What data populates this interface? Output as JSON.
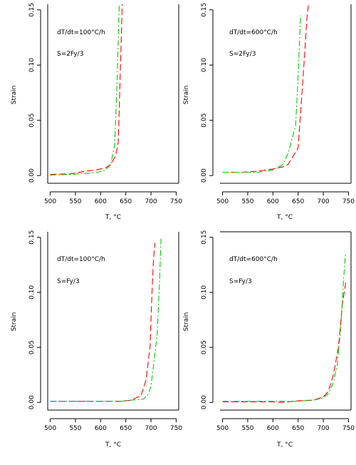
{
  "chart_data": [
    {
      "type": "line",
      "xlabel": "T, °C",
      "ylabel": "Strain",
      "xlim": [
        495,
        755
      ],
      "ylim": [
        -0.007,
        0.155
      ],
      "xticks": [
        500,
        550,
        600,
        650,
        700,
        750
      ],
      "xtick_labels": [
        "500",
        "550",
        "600",
        "650",
        "700",
        "750"
      ],
      "yticks": [
        0.0,
        0.05,
        0.1,
        0.15
      ],
      "ytick_labels": [
        "0.00",
        "0.05",
        "0.10",
        "0.15"
      ],
      "annotations": [
        "dT/dt=100°C/h",
        "S=2Fy/3"
      ],
      "series": [
        {
          "color": "#ff0000",
          "dash": "long",
          "x": [
            500,
            540,
            570,
            590,
            610,
            620,
            630,
            635,
            643
          ],
          "y": [
            0.001,
            0.0015,
            0.004,
            0.005,
            0.007,
            0.01,
            0.018,
            0.03,
            0.155
          ]
        },
        {
          "color": "#00cc00",
          "dash": "dashdot",
          "x": [
            500,
            540,
            570,
            590,
            610,
            620,
            628,
            633,
            637
          ],
          "y": [
            0.0005,
            0.001,
            0.002,
            0.0025,
            0.005,
            0.01,
            0.028,
            0.09,
            0.155
          ]
        }
      ]
    },
    {
      "type": "line",
      "xlabel": "T, °C",
      "ylabel": "Strain",
      "xlim": [
        495,
        755
      ],
      "ylim": [
        -0.007,
        0.155
      ],
      "xticks": [
        500,
        550,
        600,
        650,
        700,
        750
      ],
      "xtick_labels": [
        "500",
        "550",
        "600",
        "650",
        "700",
        "750"
      ],
      "yticks": [
        0.0,
        0.05,
        0.1,
        0.15
      ],
      "ytick_labels": [
        "0.00",
        "0.05",
        "0.10",
        "0.15"
      ],
      "annotations": [
        "dT/dt=600°C/h",
        "S=2Fy/3"
      ],
      "series": [
        {
          "color": "#ff0000",
          "dash": "long",
          "x": [
            500,
            540,
            570,
            600,
            620,
            630,
            650,
            660,
            668,
            672
          ],
          "y": [
            0.003,
            0.003,
            0.004,
            0.006,
            0.008,
            0.01,
            0.025,
            0.09,
            0.145,
            0.16
          ]
        },
        {
          "color": "#00cc00",
          "dash": "dashdot",
          "x": [
            500,
            540,
            570,
            600,
            620,
            630,
            645,
            650,
            655
          ],
          "y": [
            0.003,
            0.003,
            0.003,
            0.005,
            0.01,
            0.02,
            0.045,
            0.09,
            0.145
          ]
        }
      ]
    },
    {
      "type": "line",
      "xlabel": "T, °C",
      "ylabel": "Strain",
      "xlim": [
        495,
        755
      ],
      "ylim": [
        -0.007,
        0.155
      ],
      "xticks": [
        500,
        550,
        600,
        650,
        700,
        750
      ],
      "xtick_labels": [
        "500",
        "550",
        "600",
        "650",
        "700",
        "750"
      ],
      "yticks": [
        0.0,
        0.05,
        0.1,
        0.15
      ],
      "ytick_labels": [
        "0.00",
        "0.05",
        "0.10",
        "0.15"
      ],
      "annotations": [
        "dT/dt=100°C/h",
        "S=Fy/3"
      ],
      "series": [
        {
          "color": "#ff0000",
          "dash": "long",
          "x": [
            500,
            550,
            600,
            640,
            660,
            680,
            690,
            698,
            702,
            705,
            708
          ],
          "y": [
            0.001,
            0.001,
            0.001,
            0.001,
            0.002,
            0.006,
            0.02,
            0.05,
            0.1,
            0.13,
            0.145
          ]
        },
        {
          "color": "#00cc00",
          "dash": "dashdot",
          "x": [
            500,
            550,
            600,
            640,
            660,
            685,
            695,
            700,
            712,
            717,
            720
          ],
          "y": [
            0.001,
            0.001,
            0.001,
            0.001,
            0.002,
            0.003,
            0.008,
            0.015,
            0.06,
            0.11,
            0.15
          ]
        }
      ]
    },
    {
      "type": "line",
      "xlabel": "T, °C",
      "ylabel": "Strain",
      "xlim": [
        495,
        755
      ],
      "ylim": [
        -0.007,
        0.155
      ],
      "xticks": [
        500,
        550,
        600,
        650,
        700,
        750
      ],
      "xtick_labels": [
        "500",
        "550",
        "600",
        "650",
        "700",
        "750"
      ],
      "yticks": [
        0.0,
        0.05,
        0.1,
        0.15
      ],
      "ytick_labels": [
        "0.00",
        "0.05",
        "0.10",
        "0.15"
      ],
      "annotations": [
        "dT/dt=600°C/h",
        "S=Fy/3"
      ],
      "series": [
        {
          "color": "#ff0000",
          "dash": "long",
          "x": [
            500,
            550,
            600,
            620,
            650,
            680,
            700,
            710,
            720,
            730,
            738,
            745
          ],
          "y": [
            0.0005,
            0.0005,
            0.0005,
            0.0,
            0.0015,
            0.002,
            0.005,
            0.01,
            0.025,
            0.05,
            0.09,
            0.11
          ]
        },
        {
          "color": "#00cc00",
          "dash": "dashdot",
          "x": [
            500,
            550,
            600,
            650,
            680,
            700,
            710,
            720,
            728,
            735,
            740,
            744
          ],
          "y": [
            0.001,
            0.001,
            0.001,
            0.001,
            0.002,
            0.004,
            0.008,
            0.018,
            0.035,
            0.07,
            0.11,
            0.135
          ]
        }
      ]
    }
  ]
}
